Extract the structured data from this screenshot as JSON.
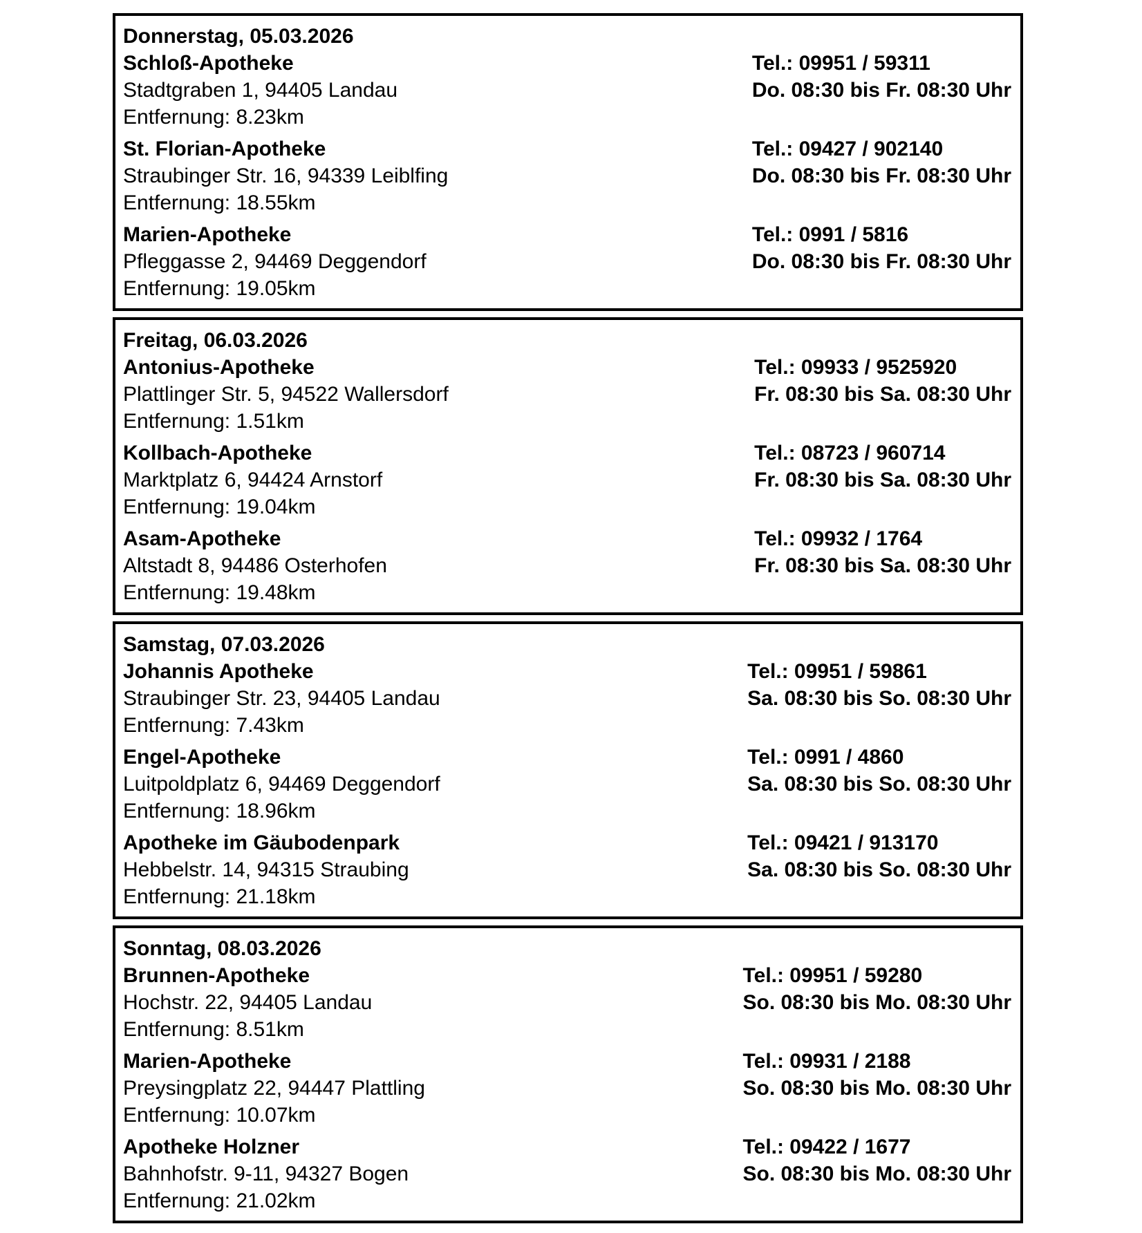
{
  "days": [
    {
      "header": "Donnerstag, 05.03.2026",
      "items": [
        {
          "name": "Schloß-Apotheke",
          "address": "Stadtgraben 1, 94405 Landau",
          "distance": "Entfernung: 8.23km",
          "phone": "Tel.: 09951 / 59311",
          "hours": "Do. 08:30 bis Fr. 08:30 Uhr"
        },
        {
          "name": "St. Florian-Apotheke",
          "address": "Straubinger Str. 16, 94339 Leiblfing",
          "distance": "Entfernung: 18.55km",
          "phone": "Tel.: 09427 / 902140",
          "hours": "Do. 08:30 bis Fr. 08:30 Uhr"
        },
        {
          "name": "Marien-Apotheke",
          "address": "Pfleggasse 2, 94469 Deggendorf",
          "distance": "Entfernung: 19.05km",
          "phone": "Tel.: 0991 / 5816",
          "hours": "Do. 08:30 bis Fr. 08:30 Uhr"
        }
      ]
    },
    {
      "header": "Freitag, 06.03.2026",
      "items": [
        {
          "name": "Antonius-Apotheke",
          "address": "Plattlinger Str. 5, 94522 Wallersdorf",
          "distance": "Entfernung: 1.51km",
          "phone": "Tel.: 09933 / 9525920",
          "hours": "Fr. 08:30 bis Sa. 08:30 Uhr"
        },
        {
          "name": "Kollbach-Apotheke",
          "address": "Marktplatz 6, 94424 Arnstorf",
          "distance": "Entfernung: 19.04km",
          "phone": "Tel.: 08723 / 960714",
          "hours": "Fr. 08:30 bis Sa. 08:30 Uhr"
        },
        {
          "name": "Asam-Apotheke",
          "address": "Altstadt 8, 94486 Osterhofen",
          "distance": "Entfernung: 19.48km",
          "phone": "Tel.: 09932 / 1764",
          "hours": "Fr. 08:30 bis Sa. 08:30 Uhr"
        }
      ]
    },
    {
      "header": "Samstag, 07.03.2026",
      "items": [
        {
          "name": "Johannis Apotheke",
          "address": "Straubinger Str. 23, 94405 Landau",
          "distance": "Entfernung: 7.43km",
          "phone": "Tel.: 09951 / 59861",
          "hours": "Sa. 08:30 bis So. 08:30 Uhr"
        },
        {
          "name": "Engel-Apotheke",
          "address": "Luitpoldplatz 6, 94469 Deggendorf",
          "distance": "Entfernung: 18.96km",
          "phone": "Tel.: 0991 / 4860",
          "hours": "Sa. 08:30 bis So. 08:30 Uhr"
        },
        {
          "name": "Apotheke im Gäubodenpark",
          "address": "Hebbelstr. 14, 94315 Straubing",
          "distance": "Entfernung: 21.18km",
          "phone": "Tel.: 09421 / 913170",
          "hours": "Sa. 08:30 bis So. 08:30 Uhr"
        }
      ]
    },
    {
      "header": "Sonntag, 08.03.2026",
      "items": [
        {
          "name": "Brunnen-Apotheke",
          "address": "Hochstr. 22, 94405 Landau",
          "distance": "Entfernung: 8.51km",
          "phone": "Tel.: 09951 / 59280",
          "hours": "So. 08:30 bis Mo. 08:30 Uhr"
        },
        {
          "name": "Marien-Apotheke",
          "address": "Preysingplatz 22, 94447 Plattling",
          "distance": "Entfernung: 10.07km",
          "phone": "Tel.: 09931 / 2188",
          "hours": "So. 08:30 bis Mo. 08:30 Uhr"
        },
        {
          "name": "Apotheke Holzner",
          "address": "Bahnhofstr. 9-11, 94327 Bogen",
          "distance": "Entfernung: 21.02km",
          "phone": "Tel.: 09422 / 1677",
          "hours": "So. 08:30 bis Mo. 08:30 Uhr"
        }
      ]
    }
  ]
}
